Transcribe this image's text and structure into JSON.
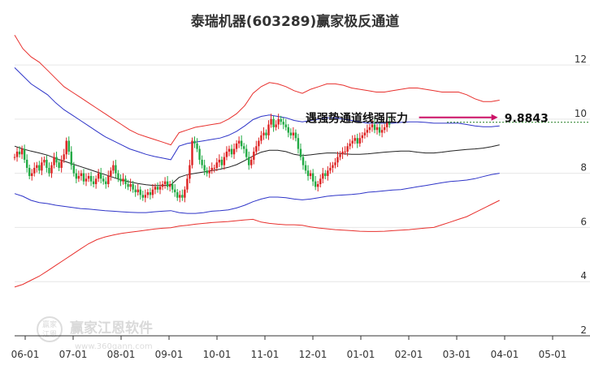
{
  "chart_data": {
    "type": "line",
    "title": "泰瑞机器(603289)赢家极反通道",
    "x_ticks": [
      "06-01",
      "07-01",
      "08-01",
      "09-01",
      "10-01",
      "11-01",
      "12-01",
      "01-01",
      "02-01",
      "03-01",
      "04-01",
      "05-01"
    ],
    "y_ticks": [
      "2",
      "4",
      "6",
      "8",
      "10",
      "12"
    ],
    "ylim": [
      2,
      13.2
    ],
    "grid": "horizontal",
    "x_index": [
      0,
      5,
      10,
      15,
      20,
      25,
      30,
      35,
      40,
      45,
      50,
      55,
      60,
      65,
      70,
      75,
      80,
      85,
      90,
      95,
      100,
      105,
      110,
      115,
      120,
      125,
      130,
      135,
      140,
      145,
      150,
      155,
      160,
      165,
      170,
      175,
      180,
      185,
      190,
      195,
      200,
      205,
      210,
      215,
      220,
      225,
      230,
      235,
      240,
      245,
      250,
      255,
      260,
      265,
      270,
      275,
      280,
      285,
      290,
      295
    ],
    "x_max": 350,
    "series": [
      {
        "key": "outer_upper",
        "color": "#e8302d",
        "values": [
          13.1,
          12.6,
          12.3,
          12.1,
          11.8,
          11.5,
          11.2,
          11,
          10.8,
          10.6,
          10.4,
          10.2,
          10,
          9.8,
          9.6,
          9.45,
          9.35,
          9.25,
          9.15,
          9.05,
          9.5,
          9.6,
          9.7,
          9.75,
          9.8,
          9.85,
          10,
          10.2,
          10.5,
          10.95,
          11.2,
          11.35,
          11.3,
          11.2,
          11.05,
          10.95,
          11.1,
          11.2,
          11.3,
          11.3,
          11.25,
          11.15,
          11.1,
          11.05,
          11,
          11,
          11.05,
          11.1,
          11.15,
          11.15,
          11.1,
          11.05,
          11,
          11,
          11,
          10.9,
          10.75,
          10.65,
          10.65,
          10.7
        ]
      },
      {
        "key": "inner_upper",
        "color": "#2e34c8",
        "values": [
          11.9,
          11.6,
          11.3,
          11.1,
          10.9,
          10.6,
          10.35,
          10.15,
          9.95,
          9.75,
          9.55,
          9.35,
          9.2,
          9.05,
          8.9,
          8.8,
          8.7,
          8.62,
          8.56,
          8.5,
          9,
          9.1,
          9.15,
          9.2,
          9.25,
          9.3,
          9.4,
          9.55,
          9.75,
          9.98,
          10.1,
          10.15,
          10.1,
          10.05,
          9.95,
          9.9,
          9.95,
          10,
          10.05,
          10.05,
          10,
          9.95,
          9.9,
          9.85,
          9.85,
          9.85,
          9.85,
          9.88,
          9.9,
          9.9,
          9.88,
          9.85,
          9.85,
          9.85,
          9.85,
          9.8,
          9.75,
          9.72,
          9.72,
          9.75
        ]
      },
      {
        "key": "middle",
        "color": "#222222",
        "values": [
          9,
          8.9,
          8.82,
          8.75,
          8.67,
          8.55,
          8.45,
          8.35,
          8.25,
          8.15,
          8.05,
          7.95,
          7.85,
          7.75,
          7.68,
          7.62,
          7.58,
          7.55,
          7.55,
          7.57,
          7.85,
          7.95,
          8,
          8.05,
          8.1,
          8.15,
          8.22,
          8.32,
          8.47,
          8.64,
          8.78,
          8.85,
          8.85,
          8.8,
          8.7,
          8.65,
          8.68,
          8.72,
          8.75,
          8.75,
          8.72,
          8.7,
          8.7,
          8.72,
          8.75,
          8.78,
          8.8,
          8.82,
          8.82,
          8.78,
          8.75,
          8.75,
          8.78,
          8.82,
          8.85,
          8.88,
          8.9,
          8.93,
          8.98,
          9.05
        ]
      },
      {
        "key": "inner_lower",
        "color": "#2e34c8",
        "values": [
          7.25,
          7.15,
          7,
          6.92,
          6.88,
          6.82,
          6.78,
          6.74,
          6.7,
          6.68,
          6.65,
          6.62,
          6.6,
          6.58,
          6.56,
          6.55,
          6.55,
          6.58,
          6.6,
          6.62,
          6.55,
          6.52,
          6.52,
          6.55,
          6.6,
          6.62,
          6.65,
          6.72,
          6.82,
          6.95,
          7.05,
          7.12,
          7.12,
          7.1,
          7.05,
          7.02,
          7.05,
          7.1,
          7.15,
          7.18,
          7.2,
          7.22,
          7.25,
          7.3,
          7.32,
          7.35,
          7.38,
          7.4,
          7.45,
          7.5,
          7.55,
          7.6,
          7.65,
          7.7,
          7.72,
          7.75,
          7.8,
          7.88,
          7.95,
          8
        ]
      },
      {
        "key": "outer_lower",
        "color": "#e8302d",
        "values": [
          3.8,
          3.9,
          4.05,
          4.2,
          4.4,
          4.6,
          4.8,
          5,
          5.2,
          5.4,
          5.55,
          5.65,
          5.72,
          5.78,
          5.82,
          5.86,
          5.9,
          5.94,
          5.97,
          5.99,
          6.05,
          6.08,
          6.12,
          6.15,
          6.18,
          6.2,
          6.22,
          6.25,
          6.28,
          6.3,
          6.2,
          6.15,
          6.12,
          6.1,
          6.1,
          6.08,
          6.02,
          5.98,
          5.95,
          5.92,
          5.9,
          5.88,
          5.86,
          5.85,
          5.85,
          5.86,
          5.88,
          5.9,
          5.92,
          5.95,
          5.98,
          6,
          6.1,
          6.2,
          6.3,
          6.4,
          6.55,
          6.7,
          6.85,
          7
        ]
      }
    ],
    "candles": {
      "up_color": "#dd2222",
      "down_color": "#22aa44",
      "x_start": 0,
      "x_step": 1.5,
      "closes": [
        8.6,
        8.8,
        8.7,
        8.9,
        8.5,
        8.2,
        7.9,
        8,
        8.2,
        8.3,
        8.1,
        8.4,
        8.5,
        8.2,
        8,
        8.3,
        8.6,
        8.4,
        8.2,
        8.5,
        8.7,
        9.2,
        8.8,
        8.3,
        8,
        7.8,
        7.9,
        8,
        7.7,
        7.8,
        7.9,
        7.7,
        7.6,
        7.8,
        8,
        7.8,
        7.7,
        7.6,
        7.9,
        8.1,
        8.3,
        8,
        7.8,
        7.7,
        7.8,
        7.6,
        7.5,
        7.6,
        7.4,
        7.3,
        7.4,
        7.2,
        7.1,
        7.2,
        7.3,
        7.2,
        7.4,
        7.5,
        7.4,
        7.5,
        7.6,
        7.7,
        7.5,
        7.6,
        7.4,
        7.3,
        7.1,
        7.2,
        7.1,
        7.4,
        7.8,
        8.3,
        9.2,
        9.1,
        8.9,
        8.5,
        8.3,
        8.1,
        8,
        8.1,
        8.2,
        8.2,
        8.4,
        8.5,
        8.3,
        8.6,
        8.8,
        8.9,
        8.7,
        8.9,
        9.1,
        9.2,
        9,
        8.9,
        8.6,
        8.3,
        8.5,
        8.8,
        9,
        9.2,
        9.4,
        9.5,
        9.4,
        9.8,
        10,
        9.7,
        9.8,
        10,
        9.9,
        9.8,
        9.7,
        9.5,
        9.4,
        9.5,
        9.3,
        8.9,
        8.6,
        8.3,
        8.1,
        7.9,
        8,
        7.7,
        7.5,
        7.6,
        7.8,
        8,
        7.9,
        8.1,
        8.2,
        8.3,
        8.4,
        8.6,
        8.7,
        8.8,
        8.8,
        9,
        9.1,
        9.2,
        9.3,
        9.1,
        9.3,
        9.4,
        9.5,
        9.6,
        9.7,
        9.8,
        9.6,
        9.7,
        9.5,
        9.6,
        9.7,
        9.9,
        9.8
      ]
    },
    "resistance": {
      "label": "遇强势通道线强压力",
      "value": "9.8843",
      "level": 9.8843,
      "line_color": "#1f7a1f",
      "arrow_color": "#cc1166"
    },
    "watermark": {
      "text": "赢家江恩软件",
      "url": "www.360gann.com",
      "badge_top": "赢家",
      "badge_bottom": "江恩"
    }
  }
}
